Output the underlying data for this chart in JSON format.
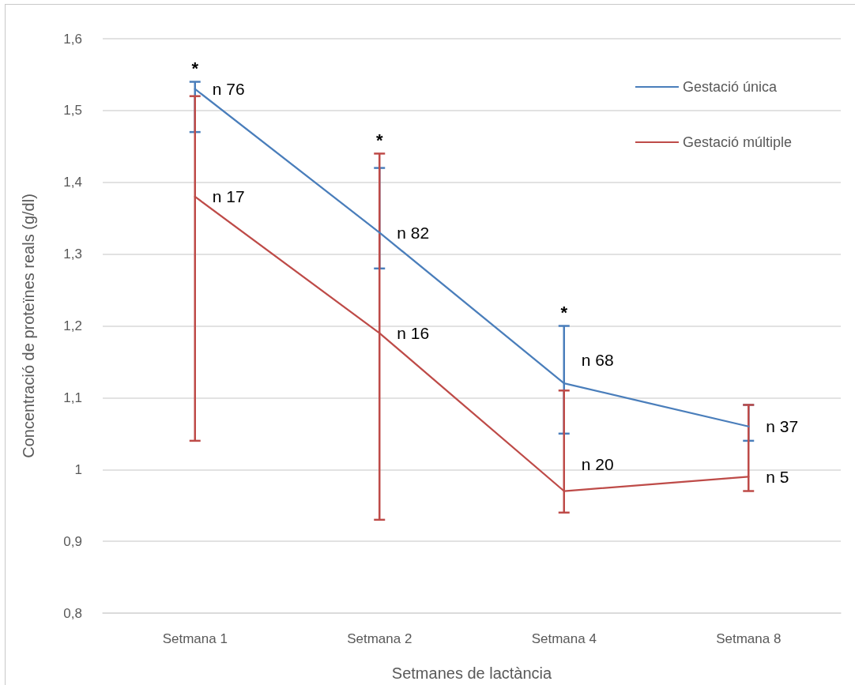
{
  "chart_data": {
    "type": "line",
    "xlabel": "Setmanes de lactància",
    "ylabel": "Concentració de proteïnes reals (g/dl)",
    "categories": [
      "Setmana 1",
      "Setmana 2",
      "Setmana 4",
      "Setmana 8"
    ],
    "series": [
      {
        "name": "Gestació única",
        "color": "#4a7ebb",
        "values": [
          1.53,
          1.33,
          1.12,
          1.06
        ],
        "errors": [
          [
            1.47,
            1.54
          ],
          [
            1.28,
            1.42
          ],
          [
            1.05,
            1.2
          ],
          [
            1.04,
            1.09
          ]
        ]
      },
      {
        "name": "Gestació múltiple",
        "color": "#be4b48",
        "values": [
          1.38,
          1.19,
          0.97,
          0.99
        ],
        "errors": [
          [
            1.04,
            1.52
          ],
          [
            0.93,
            1.44
          ],
          [
            0.94,
            1.11
          ],
          [
            0.97,
            1.09
          ]
        ]
      }
    ],
    "ylim": [
      0.8,
      1.6
    ],
    "yticks": [
      {
        "value": 0.8,
        "label": "0,8"
      },
      {
        "value": 0.9,
        "label": "0,9"
      },
      1,
      {
        "value": 1.1,
        "label": "1,1"
      },
      {
        "value": 1.2,
        "label": "1,2"
      },
      {
        "value": 1.3,
        "label": "1,3"
      },
      {
        "value": 1.4,
        "label": "1,4"
      },
      {
        "value": 1.5,
        "label": "1,5"
      },
      {
        "value": 1.6,
        "label": "1,6"
      }
    ],
    "grid": "y",
    "legend": "top right",
    "marker": "none",
    "line_style": "solid",
    "annotations": [
      {
        "text": "n 76",
        "x": "Setmana 1",
        "y": 1.53
      },
      {
        "text": "n 17",
        "x": "Setmana 1",
        "y": 1.38
      },
      {
        "text": "n 82",
        "x": "Setmana 2",
        "y": 1.33
      },
      {
        "text": "n 16",
        "x": "Setmana 2",
        "y": 1.19
      },
      {
        "text": "n 68",
        "x": "Setmana 4",
        "y": 1.12
      },
      {
        "text": "n 20",
        "x": "Setmana 4",
        "y": 0.97
      },
      {
        "text": "n 37",
        "x": "Setmana 8",
        "y": 1.06
      },
      {
        "text": "n 5",
        "x": "Setmana 8",
        "y": 0.99
      },
      {
        "text": "*",
        "x": "Setmana 1",
        "y": 1.54
      },
      {
        "text": "*",
        "x": "Setmana 2",
        "y": 1.44
      },
      {
        "text": "*",
        "x": "Setmana 4",
        "y": 1.2
      }
    ]
  }
}
